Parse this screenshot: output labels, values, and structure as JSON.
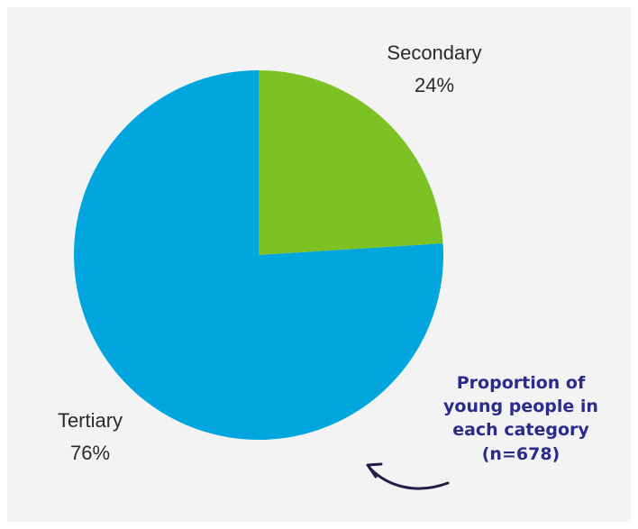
{
  "chart_data": {
    "type": "pie",
    "slices": [
      {
        "label": "Secondary",
        "value": 24,
        "value_label": "24%",
        "color": "#7dc225"
      },
      {
        "label": "Tertiary",
        "value": 76,
        "value_label": "76%",
        "color": "#00a6dd"
      }
    ],
    "start": "12 o'clock",
    "direction": "clockwise",
    "legend": "none"
  },
  "annotation": {
    "lines": [
      "Proportion of",
      "young people in",
      "each category",
      "(n=678)"
    ],
    "color": "#2b2b8c"
  },
  "background_color": "#f3f3f3"
}
